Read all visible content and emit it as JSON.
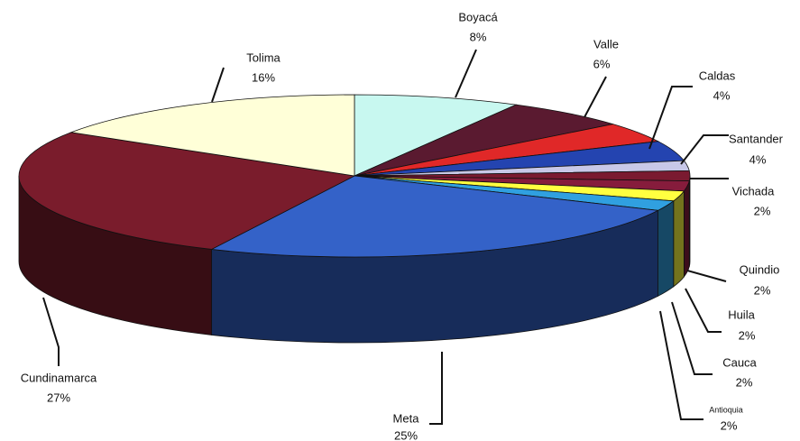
{
  "chart_data": {
    "type": "pie3d",
    "categories": [
      "Boyacá",
      "Valle",
      "Caldas",
      "Santander",
      "Vichada",
      "Quindio",
      "Huila",
      "Cauca",
      "Antioquia",
      "Meta",
      "Cundinamarca",
      "Tolima"
    ],
    "values": [
      8,
      6,
      4,
      4,
      2,
      2,
      2,
      2,
      2,
      25,
      27,
      16
    ],
    "value_labels": [
      "8%",
      "6%",
      "4%",
      "4%",
      "2%",
      "2%",
      "2%",
      "2%",
      "2%",
      "25%",
      "27%",
      "16%"
    ],
    "colors": [
      "#c8f8f0",
      "#5a1a30",
      "#e02828",
      "#2444b0",
      "#c8c8e8",
      "#7a1a30",
      "#861c3c",
      "#ffff40",
      "#30a0e0",
      "#3462c8",
      "#7a1c2c",
      "#ffffd8"
    ]
  }
}
